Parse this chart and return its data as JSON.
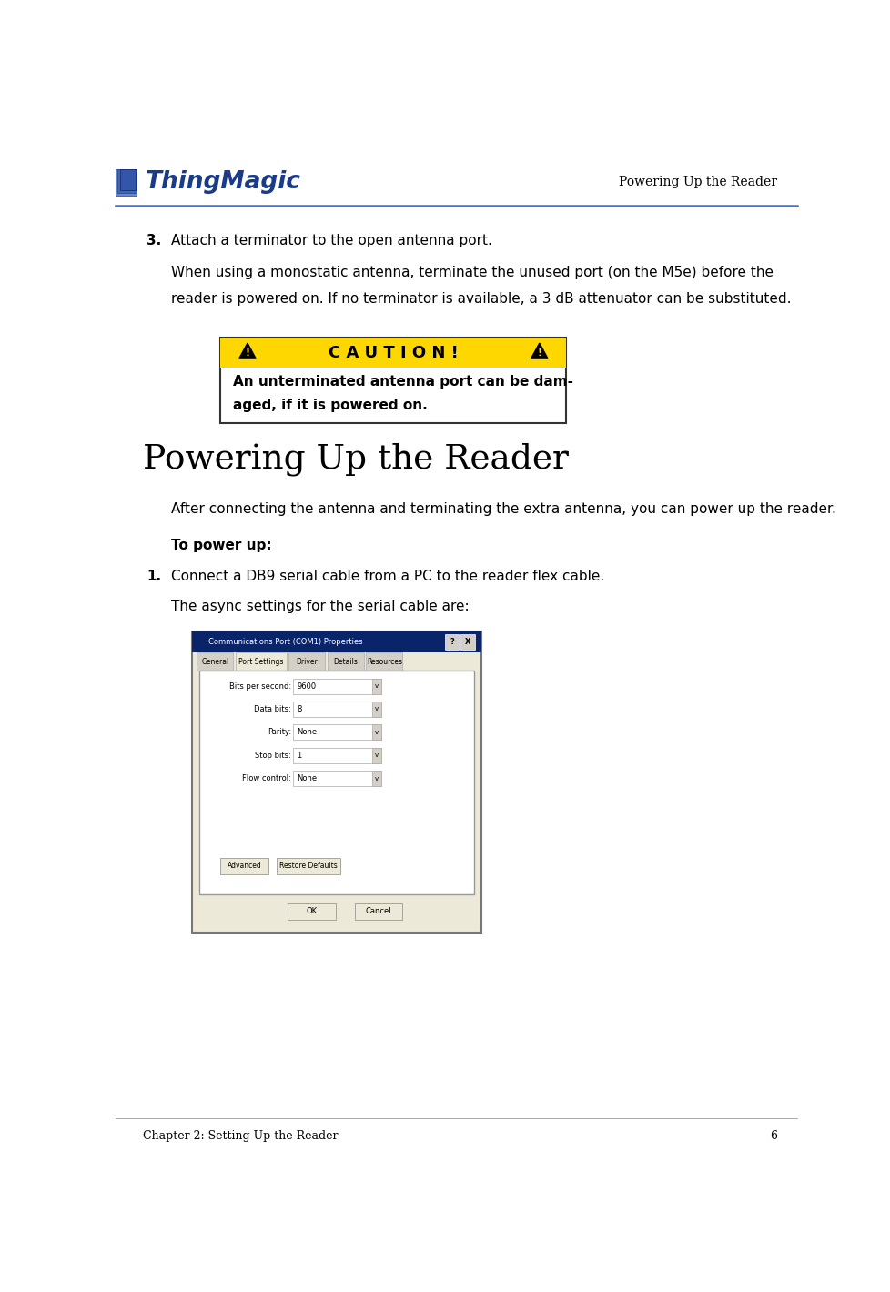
{
  "page_width": 9.79,
  "page_height": 14.2,
  "bg_color": "#ffffff",
  "header_line_color": "#4472c4",
  "header_right_text": "Powering Up the Reader",
  "footer_left_text": "Chapter 2: Setting Up the Reader",
  "footer_right_text": "6",
  "step3_number": "3.",
  "step3_text": "Attach a terminator to the open antenna port.",
  "step3_body_line1": "When using a monostatic antenna, terminate the unused port (on the M5e) before the",
  "step3_body_line2": "reader is powered on. If no terminator is available, a 3 dB attenuator can be substituted.",
  "caution_header": "C A U T I O N !",
  "caution_body_line1": "An unterminated antenna port can be dam-",
  "caution_body_line2": "aged, if it is powered on.",
  "caution_bg": "#FFD700",
  "caution_border": "#333333",
  "section_title": "Powering Up the Reader",
  "section_intro": "After connecting the antenna and terminating the extra antenna, you can power up the reader.",
  "to_power_up_label": "To power up",
  "step1_number": "1.",
  "step1_text": "Connect a DB9 serial cable from a PC to the reader flex cable.",
  "step1_body": "The async settings for the serial cable are:",
  "dialog_title": "Communications Port (COM1) Properties",
  "dialog_tabs": [
    "General",
    "Port Settings",
    "Driver",
    "Details",
    "Resources"
  ],
  "dialog_fields": [
    [
      "Bits per second:",
      "9600"
    ],
    [
      "Data bits:",
      "8"
    ],
    [
      "Parity:",
      "None"
    ],
    [
      "Stop bits:",
      "1"
    ],
    [
      "Flow control:",
      "None"
    ]
  ]
}
